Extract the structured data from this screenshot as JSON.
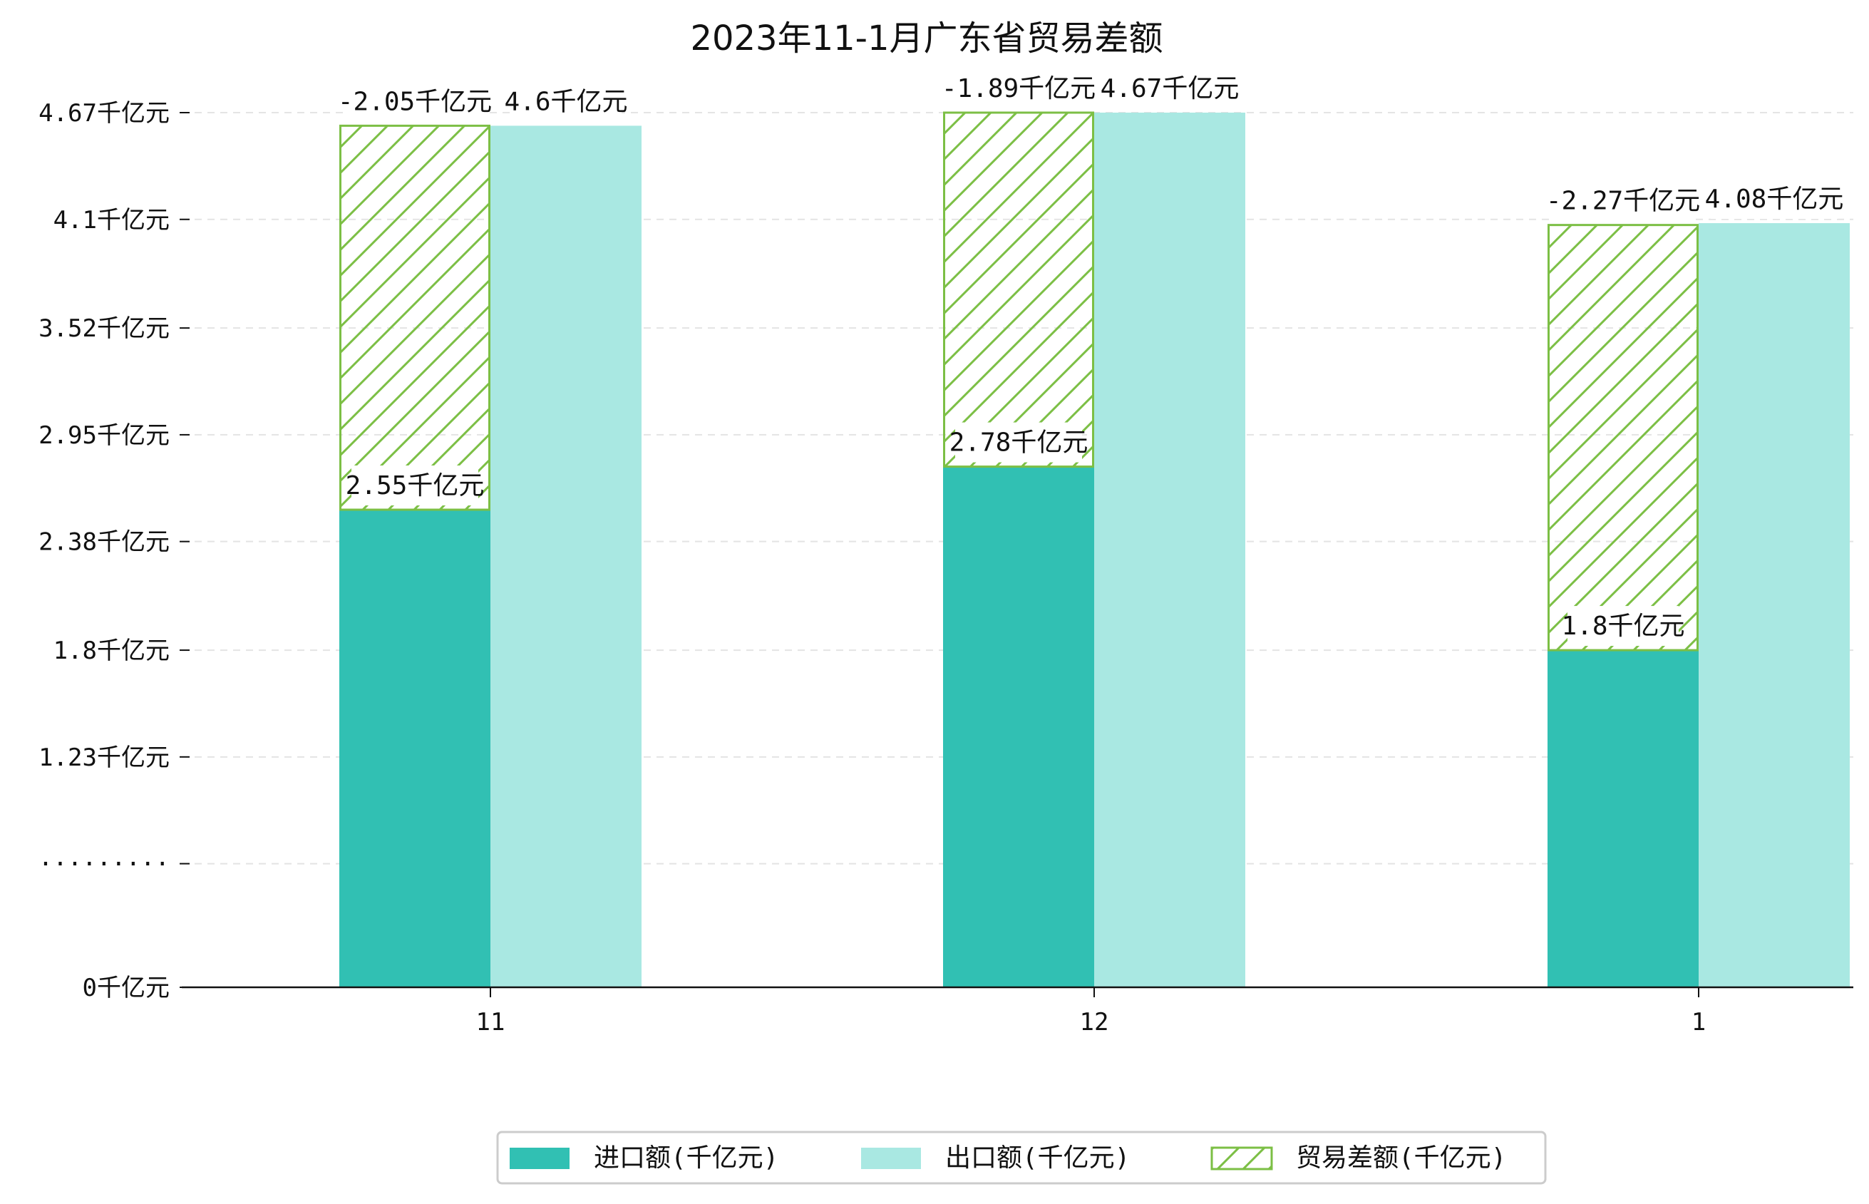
{
  "title": "2023年11-1月广东省贸易差额",
  "chart_data": {
    "type": "bar",
    "title": "2023年11-1月广东省贸易差额",
    "categories": [
      "11",
      "12",
      "1"
    ],
    "series": [
      {
        "name": "进口额(千亿元)",
        "values": [
          2.55,
          2.78,
          1.8
        ],
        "labels": [
          "2.55千亿元",
          "2.78千亿元",
          "1.8千亿元"
        ],
        "color": "#31c0b3"
      },
      {
        "name": "出口额(千亿元)",
        "values": [
          4.6,
          4.67,
          4.08
        ],
        "labels": [
          "4.6千亿元",
          "4.67千亿元",
          "4.08千亿元"
        ],
        "color": "#a9e8e2"
      },
      {
        "name": "贸易差额(千亿元)",
        "values": [
          -2.05,
          -1.89,
          -2.27
        ],
        "labels": [
          "-2.05千亿元",
          "-1.89千亿元",
          "-2.27千亿元"
        ],
        "color": "#7cbf45",
        "pattern": "hatch"
      }
    ],
    "y_ticks": [
      {
        "value": 0,
        "label": "0千亿元"
      },
      {
        "value": 0.66,
        "label": "·········"
      },
      {
        "value": 1.23,
        "label": "1.23千亿元"
      },
      {
        "value": 1.8,
        "label": "1.8千亿元"
      },
      {
        "value": 2.38,
        "label": "2.38千亿元"
      },
      {
        "value": 2.95,
        "label": "2.95千亿元"
      },
      {
        "value": 3.52,
        "label": "3.52千亿元"
      },
      {
        "value": 4.1,
        "label": "4.1千亿元"
      },
      {
        "value": 4.67,
        "label": "4.67千亿元"
      }
    ],
    "ylim": [
      0,
      4.67
    ],
    "grid": true,
    "legend_position": "bottom"
  }
}
